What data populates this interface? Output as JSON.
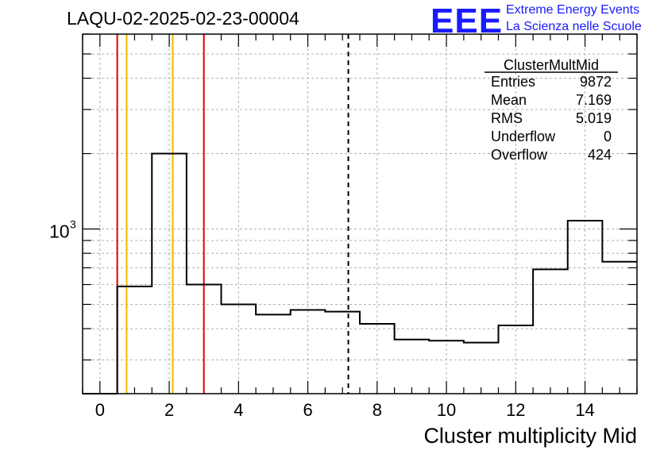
{
  "title": "LAQU-02-2025-02-23-00004",
  "logo": {
    "text": "EEE",
    "line1": "Extreme Energy Events",
    "line2": "La Scienza nelle Scuole",
    "color": "#1a1aff"
  },
  "stats": {
    "name": "ClusterMultMid",
    "rows": [
      {
        "key": "Entries",
        "value": "9872"
      },
      {
        "key": "Mean",
        "value": "7.169"
      },
      {
        "key": "RMS",
        "value": "5.019"
      },
      {
        "key": "Underflow",
        "value": "0"
      },
      {
        "key": "Overflow",
        "value": "424"
      }
    ]
  },
  "chart_data": {
    "type": "histogram",
    "xlabel": "Cluster multiplicity Mid",
    "ylabel": "",
    "xlim": [
      -0.5,
      15.5
    ],
    "ylim": [
      220,
      6000
    ],
    "yscale": "log",
    "grid": true,
    "xticks": [
      0,
      2,
      4,
      6,
      8,
      10,
      12,
      14
    ],
    "xtick_labels": [
      "0",
      "2",
      "4",
      "6",
      "8",
      "10",
      "12",
      "14"
    ],
    "ytick_label": {
      "base": "10",
      "exp": "3",
      "value": 1000
    },
    "bins": [
      {
        "lo": -0.5,
        "hi": 0.5,
        "value": 0
      },
      {
        "lo": 0.5,
        "hi": 1.5,
        "value": 590
      },
      {
        "lo": 1.5,
        "hi": 2.5,
        "value": 2000
      },
      {
        "lo": 2.5,
        "hi": 3.5,
        "value": 600
      },
      {
        "lo": 3.5,
        "hi": 4.5,
        "value": 500
      },
      {
        "lo": 4.5,
        "hi": 5.5,
        "value": 455
      },
      {
        "lo": 5.5,
        "hi": 6.5,
        "value": 475
      },
      {
        "lo": 6.5,
        "hi": 7.5,
        "value": 468
      },
      {
        "lo": 7.5,
        "hi": 8.5,
        "value": 418
      },
      {
        "lo": 8.5,
        "hi": 9.5,
        "value": 362
      },
      {
        "lo": 9.5,
        "hi": 10.5,
        "value": 358
      },
      {
        "lo": 10.5,
        "hi": 11.5,
        "value": 352
      },
      {
        "lo": 11.5,
        "hi": 12.5,
        "value": 412
      },
      {
        "lo": 12.5,
        "hi": 13.5,
        "value": 690
      },
      {
        "lo": 13.5,
        "hi": 14.5,
        "value": 1080
      },
      {
        "lo": 14.5,
        "hi": 15.5,
        "value": 740
      }
    ],
    "vlines": [
      {
        "x": 0.5,
        "color": "#e00000",
        "style": "solid"
      },
      {
        "x": 0.77,
        "color": "#f5b800",
        "style": "solid"
      },
      {
        "x": 2.1,
        "color": "#f5b800",
        "style": "solid"
      },
      {
        "x": 3.0,
        "color": "#e00000",
        "style": "solid"
      },
      {
        "x": 7.169,
        "color": "#000000",
        "style": "dashed"
      }
    ]
  }
}
